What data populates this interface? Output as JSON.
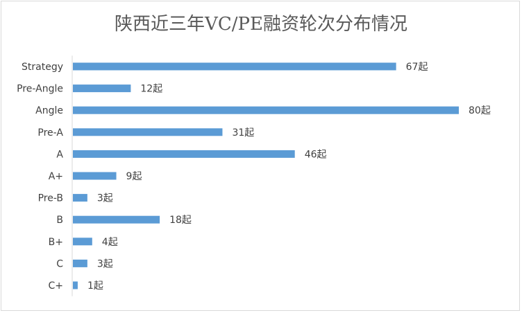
{
  "chart_data": {
    "type": "bar",
    "orientation": "horizontal",
    "title": "陕西近三年VC/PE融资轮次分布情况",
    "xlabel": "",
    "ylabel": "",
    "grid": false,
    "legend": "none",
    "bar_color": "#5B9BD5",
    "value_suffix": "起",
    "xlim": [
      0,
      80
    ],
    "categories": [
      "Strategy",
      "Pre-Angle",
      "Angle",
      "Pre-A",
      "A",
      "A+",
      "Pre-B",
      "B",
      "B+",
      "C",
      "C+"
    ],
    "values": [
      67,
      12,
      80,
      31,
      46,
      9,
      3,
      18,
      4,
      3,
      1
    ],
    "data_labels": [
      "67起",
      "12起",
      "80起",
      "31起",
      "46起",
      "9起",
      "3起",
      "18起",
      "4起",
      "3起",
      "1起"
    ]
  }
}
